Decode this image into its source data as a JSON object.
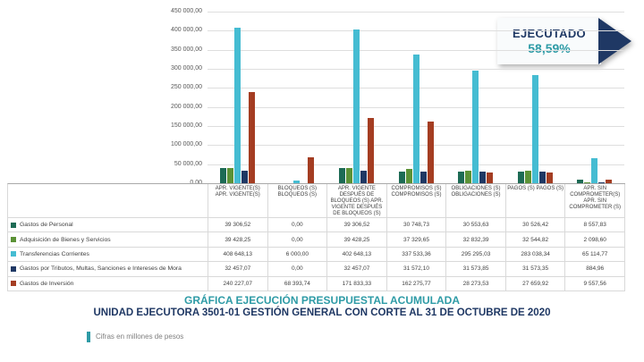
{
  "slide": {
    "title_line1": "GRÁFICA EJECUCIÓN PRESUPUESTAL ACUMULADA",
    "title_line2": "UNIDAD EJECUTORA 3501-01 GESTIÓN GENERAL CON CORTE AL 31 DE OCTUBRE DE 2020",
    "footnote": "Cifras en millones de pesos",
    "badge": {
      "label": "EJECUTADO",
      "value": "58,59%"
    },
    "accent_teal": "#2e9ba6",
    "accent_navy": "#1f3864"
  },
  "chart_data": {
    "type": "bar",
    "title": "",
    "xlabel": "",
    "ylabel": "",
    "ylim": [
      0,
      450000
    ],
    "ytick_step": 50000,
    "ytick_labels": [
      "450 000,00",
      "400 000,00",
      "350 000,00",
      "300 000,00",
      "250 000,00",
      "200 000,00",
      "150 000,00",
      "100 000,00",
      "50 000,00",
      "0,00"
    ],
    "grid": true,
    "legend_position": "data-table-left",
    "categories": [
      "APR. VIGENTE(S)",
      "BLOQUEOS (S)",
      "APR. VIGENTE DESPUÉS DE BLOQUEOS (S)",
      "COMPROMISOS (S)",
      "OBLIGACIONES (S)",
      "PAGOS (S)",
      "APR. SIN COMPROMETER (S)"
    ],
    "category_axis_display": [
      "APR. VIGENTE(S) APR. VIGENTE(S)",
      "BLOQUEOS (S) BLOQUEOS (S)",
      "APR. VIGENTE DESPUÉS DE BLOQUEOS (S) APR. VIGENTE DESPUÉS DE BLOQUEOS (S)",
      "COMPROMISOS (S) COMPROMISOS (S)",
      "OBLIGACIONES (S) OBLIGACIONES (S)",
      "PAGOS (S) PAGOS (S)",
      "APR. SIN COMPROMETER(S) APR. SIN COMPROMETER (S)"
    ],
    "series": [
      {
        "name": "Gastos de Personal",
        "color": "#1d6b55",
        "values": [
          39306.52,
          0,
          39306.52,
          30748.73,
          30553.63,
          30526.42,
          8557.83
        ],
        "display": [
          "39 306,52",
          "0,00",
          "39 306,52",
          "30 748,73",
          "30 553,63",
          "30 526,42",
          "8 557,83"
        ]
      },
      {
        "name": "Adquisición de Bienes y Servicios",
        "color": "#5b9236",
        "values": [
          39428.25,
          0,
          39428.25,
          37329.65,
          32832.39,
          32544.82,
          2098.6
        ],
        "display": [
          "39 428,25",
          "0,00",
          "39 428,25",
          "37 329,65",
          "32 832,39",
          "32 544,82",
          "2 098,60"
        ]
      },
      {
        "name": "Transferencias Corrientes",
        "color": "#45bcd2",
        "values": [
          408648.13,
          6000.0,
          402648.13,
          337533.36,
          295295.03,
          283038.34,
          65114.77
        ],
        "display": [
          "408 648,13",
          "6 000,00",
          "402 648,13",
          "337 533,36",
          "295 295,03",
          "283 038,34",
          "65 114,77"
        ]
      },
      {
        "name": "Gastos por Tributos, Multas, Sanciones e Intereses de Mora",
        "color": "#1f3864",
        "values": [
          32457.07,
          0,
          32457.07,
          31572.1,
          31573.85,
          31573.35,
          884.96
        ],
        "display": [
          "32 457,07",
          "0,00",
          "32 457,07",
          "31 572,10",
          "31 573,85",
          "31 573,35",
          "884,96"
        ]
      },
      {
        "name": "Gastos de Inversión",
        "color": "#a43d22",
        "values": [
          240227.07,
          68393.74,
          171833.33,
          162275.77,
          28273.53,
          27659.92,
          9557.56
        ],
        "display": [
          "240 227,07",
          "68 393,74",
          "171 833,33",
          "162 275,77",
          "28 273,53",
          "27 659,92",
          "9 557,56"
        ]
      }
    ]
  }
}
